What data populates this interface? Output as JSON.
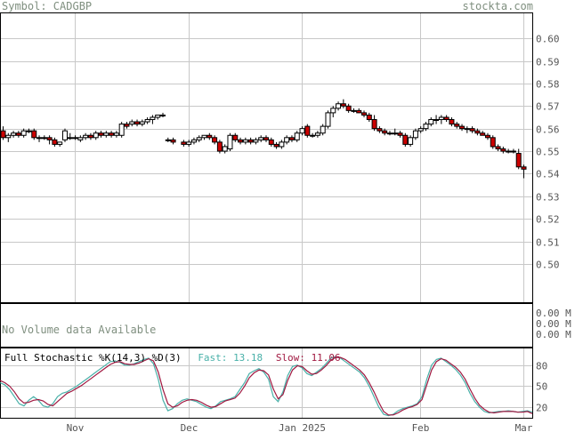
{
  "header": {
    "symbol": "Symbol: CADGBP",
    "site": "stockta.com"
  },
  "volume_panel": {
    "message": "No Volume data Available",
    "axis_labels": [
      "0.00 M",
      "0.00 M",
      "0.00 M"
    ]
  },
  "stochastic_panel": {
    "label": "Full Stochastic %K(14,3) %D(3)",
    "fast_label": "Fast:",
    "fast_value": "13.18",
    "slow_label": "Slow:",
    "slow_value": "11.06",
    "axis_labels": [
      "80",
      "50",
      "20"
    ]
  },
  "colors": {
    "up": "#ffffff",
    "down": "#cc0000",
    "fast": "#48b0a8",
    "slow": "#a01840",
    "grid": "#c8c8c8"
  },
  "chart_data": [
    {
      "type": "candlestick",
      "title": "Symbol: CADGBP",
      "y_ticks": [
        "0.60",
        "0.59",
        "0.58",
        "0.57",
        "0.56",
        "0.55",
        "0.54",
        "0.53",
        "0.52",
        "0.51",
        "0.50"
      ],
      "ylim": [
        0.483,
        0.6115
      ],
      "x_ticks": [
        {
          "label": "Nov",
          "index": 14
        },
        {
          "label": "Dec",
          "index": 35
        },
        {
          "label": "Jan 2025",
          "index": 57
        },
        {
          "label": "Feb",
          "index": 80
        },
        {
          "label": "Mar",
          "index": 100
        }
      ],
      "gap_after_index": 33,
      "candles": [
        [
          0.559,
          0.561,
          0.555,
          0.556
        ],
        [
          0.556,
          0.558,
          0.554,
          0.557
        ],
        [
          0.557,
          0.559,
          0.556,
          0.558
        ],
        [
          0.558,
          0.559,
          0.556,
          0.557
        ],
        [
          0.557,
          0.56,
          0.556,
          0.559
        ],
        [
          0.559,
          0.56,
          0.558,
          0.559
        ],
        [
          0.559,
          0.56,
          0.555,
          0.556
        ],
        [
          0.556,
          0.557,
          0.554,
          0.556
        ],
        [
          0.556,
          0.557,
          0.555,
          0.556
        ],
        [
          0.556,
          0.557,
          0.553,
          0.555
        ],
        [
          0.555,
          0.556,
          0.552,
          0.553
        ],
        [
          0.553,
          0.554,
          0.552,
          0.554
        ],
        [
          0.555,
          0.56,
          0.554,
          0.559
        ],
        [
          0.556,
          0.558,
          0.555,
          0.556
        ],
        [
          0.556,
          0.557,
          0.555,
          0.556
        ],
        [
          0.555,
          0.557,
          0.554,
          0.556
        ],
        [
          0.556,
          0.558,
          0.555,
          0.557
        ],
        [
          0.557,
          0.558,
          0.555,
          0.556
        ],
        [
          0.556,
          0.559,
          0.555,
          0.558
        ],
        [
          0.558,
          0.559,
          0.556,
          0.557
        ],
        [
          0.557,
          0.559,
          0.556,
          0.558
        ],
        [
          0.558,
          0.559,
          0.556,
          0.557
        ],
        [
          0.557,
          0.559,
          0.556,
          0.558
        ],
        [
          0.557,
          0.563,
          0.556,
          0.562
        ],
        [
          0.562,
          0.563,
          0.56,
          0.561
        ],
        [
          0.562,
          0.564,
          0.561,
          0.563
        ],
        [
          0.563,
          0.564,
          0.561,
          0.562
        ],
        [
          0.562,
          0.564,
          0.561,
          0.563
        ],
        [
          0.563,
          0.565,
          0.562,
          0.564
        ],
        [
          0.564,
          0.566,
          0.562,
          0.565
        ],
        [
          0.565,
          0.566,
          0.564,
          0.566
        ],
        [
          0.566,
          0.567,
          0.565,
          0.566
        ],
        [
          0.555,
          0.556,
          0.554,
          0.555
        ],
        [
          0.555,
          0.556,
          0.553,
          0.554
        ],
        [
          0.554,
          0.555,
          0.552,
          0.553
        ],
        [
          0.553,
          0.555,
          0.552,
          0.554
        ],
        [
          0.554,
          0.556,
          0.553,
          0.555
        ],
        [
          0.555,
          0.557,
          0.554,
          0.556
        ],
        [
          0.556,
          0.557,
          0.555,
          0.557
        ],
        [
          0.557,
          0.558,
          0.555,
          0.556
        ],
        [
          0.556,
          0.557,
          0.553,
          0.554
        ],
        [
          0.554,
          0.555,
          0.549,
          0.55
        ],
        [
          0.55,
          0.553,
          0.549,
          0.552
        ],
        [
          0.551,
          0.558,
          0.55,
          0.557
        ],
        [
          0.557,
          0.558,
          0.554,
          0.555
        ],
        [
          0.555,
          0.556,
          0.553,
          0.554
        ],
        [
          0.554,
          0.556,
          0.553,
          0.555
        ],
        [
          0.555,
          0.556,
          0.553,
          0.554
        ],
        [
          0.554,
          0.556,
          0.553,
          0.555
        ],
        [
          0.555,
          0.557,
          0.554,
          0.556
        ],
        [
          0.556,
          0.557,
          0.554,
          0.555
        ],
        [
          0.555,
          0.556,
          0.552,
          0.553
        ],
        [
          0.553,
          0.554,
          0.551,
          0.552
        ],
        [
          0.552,
          0.555,
          0.551,
          0.554
        ],
        [
          0.554,
          0.557,
          0.553,
          0.556
        ],
        [
          0.556,
          0.557,
          0.554,
          0.555
        ],
        [
          0.555,
          0.559,
          0.554,
          0.558
        ],
        [
          0.558,
          0.561,
          0.557,
          0.56
        ],
        [
          0.561,
          0.562,
          0.556,
          0.557
        ],
        [
          0.557,
          0.558,
          0.556,
          0.557
        ],
        [
          0.557,
          0.559,
          0.556,
          0.558
        ],
        [
          0.558,
          0.562,
          0.557,
          0.561
        ],
        [
          0.561,
          0.568,
          0.56,
          0.567
        ],
        [
          0.567,
          0.57,
          0.565,
          0.569
        ],
        [
          0.569,
          0.572,
          0.568,
          0.571
        ],
        [
          0.571,
          0.573,
          0.569,
          0.57
        ],
        [
          0.57,
          0.571,
          0.567,
          0.568
        ],
        [
          0.568,
          0.569,
          0.567,
          0.568
        ],
        [
          0.568,
          0.569,
          0.567,
          0.567
        ],
        [
          0.567,
          0.568,
          0.565,
          0.566
        ],
        [
          0.566,
          0.567,
          0.563,
          0.564
        ],
        [
          0.564,
          0.566,
          0.559,
          0.56
        ],
        [
          0.56,
          0.561,
          0.558,
          0.559
        ],
        [
          0.559,
          0.56,
          0.557,
          0.558
        ],
        [
          0.558,
          0.559,
          0.557,
          0.558
        ],
        [
          0.558,
          0.56,
          0.557,
          0.558
        ],
        [
          0.558,
          0.559,
          0.556,
          0.557
        ],
        [
          0.557,
          0.558,
          0.552,
          0.553
        ],
        [
          0.553,
          0.557,
          0.552,
          0.556
        ],
        [
          0.556,
          0.56,
          0.555,
          0.559
        ],
        [
          0.559,
          0.561,
          0.558,
          0.56
        ],
        [
          0.56,
          0.563,
          0.559,
          0.562
        ],
        [
          0.562,
          0.565,
          0.561,
          0.564
        ],
        [
          0.564,
          0.566,
          0.562,
          0.564
        ],
        [
          0.564,
          0.566,
          0.562,
          0.565
        ],
        [
          0.565,
          0.566,
          0.563,
          0.564
        ],
        [
          0.564,
          0.565,
          0.561,
          0.562
        ],
        [
          0.562,
          0.563,
          0.56,
          0.561
        ],
        [
          0.561,
          0.562,
          0.559,
          0.56
        ],
        [
          0.56,
          0.561,
          0.558,
          0.56
        ],
        [
          0.56,
          0.561,
          0.558,
          0.559
        ],
        [
          0.559,
          0.56,
          0.557,
          0.558
        ],
        [
          0.558,
          0.559,
          0.557,
          0.557
        ],
        [
          0.557,
          0.558,
          0.555,
          0.556
        ],
        [
          0.556,
          0.557,
          0.551,
          0.552
        ],
        [
          0.552,
          0.553,
          0.55,
          0.551
        ],
        [
          0.551,
          0.552,
          0.549,
          0.55
        ],
        [
          0.55,
          0.551,
          0.549,
          0.55
        ],
        [
          0.55,
          0.551,
          0.549,
          0.55
        ],
        [
          0.549,
          0.551,
          0.542,
          0.543
        ],
        [
          0.543,
          0.544,
          0.538,
          0.542
        ]
      ]
    },
    {
      "type": "line",
      "title": "Full Stochastic %K(14,3) %D(3)",
      "ylim": [
        5,
        105
      ],
      "y_ticks": [
        "80",
        "50",
        "20"
      ],
      "series": [
        {
          "name": "Fast",
          "values": [
            55,
            52,
            45,
            35,
            25,
            22,
            30,
            35,
            30,
            22,
            20,
            25,
            35,
            40,
            42,
            46,
            50,
            55,
            60,
            65,
            70,
            75,
            80,
            85,
            86,
            84,
            80,
            80,
            82,
            85,
            88,
            90,
            82,
            60,
            30,
            15,
            18,
            25,
            30,
            32,
            30,
            28,
            24,
            20,
            18,
            22,
            28,
            30,
            32,
            35,
            45,
            55,
            68,
            72,
            75,
            70,
            60,
            35,
            28,
            42,
            65,
            78,
            80,
            76,
            68,
            65,
            70,
            75,
            82,
            90,
            92,
            90,
            85,
            80,
            75,
            70,
            62,
            50,
            35,
            20,
            10,
            8,
            10,
            15,
            18,
            20,
            22,
            25,
            35,
            60,
            80,
            88,
            90,
            85,
            80,
            74,
            66,
            55,
            40,
            28,
            20,
            14,
            12,
            13,
            14,
            14,
            15,
            14,
            13,
            14,
            15,
            13
          ]
        },
        {
          "name": "Slow",
          "values": [
            58,
            55,
            50,
            42,
            32,
            26,
            27,
            30,
            31,
            29,
            24,
            22,
            28,
            34,
            40,
            43,
            47,
            51,
            56,
            61,
            66,
            71,
            76,
            81,
            84,
            85,
            82,
            81,
            81,
            83,
            86,
            89,
            86,
            70,
            45,
            25,
            20,
            22,
            27,
            30,
            31,
            30,
            27,
            23,
            20,
            21,
            25,
            29,
            31,
            33,
            40,
            50,
            62,
            69,
            73,
            72,
            66,
            46,
            32,
            38,
            58,
            73,
            79,
            78,
            72,
            67,
            68,
            73,
            79,
            87,
            91,
            91,
            88,
            83,
            78,
            73,
            66,
            55,
            42,
            27,
            14,
            9,
            9,
            12,
            16,
            19,
            21,
            24,
            31,
            52,
            73,
            85,
            89,
            87,
            82,
            77,
            70,
            60,
            46,
            33,
            23,
            17,
            13,
            12,
            13,
            14,
            14,
            14,
            13,
            13,
            14,
            11
          ]
        }
      ]
    }
  ]
}
